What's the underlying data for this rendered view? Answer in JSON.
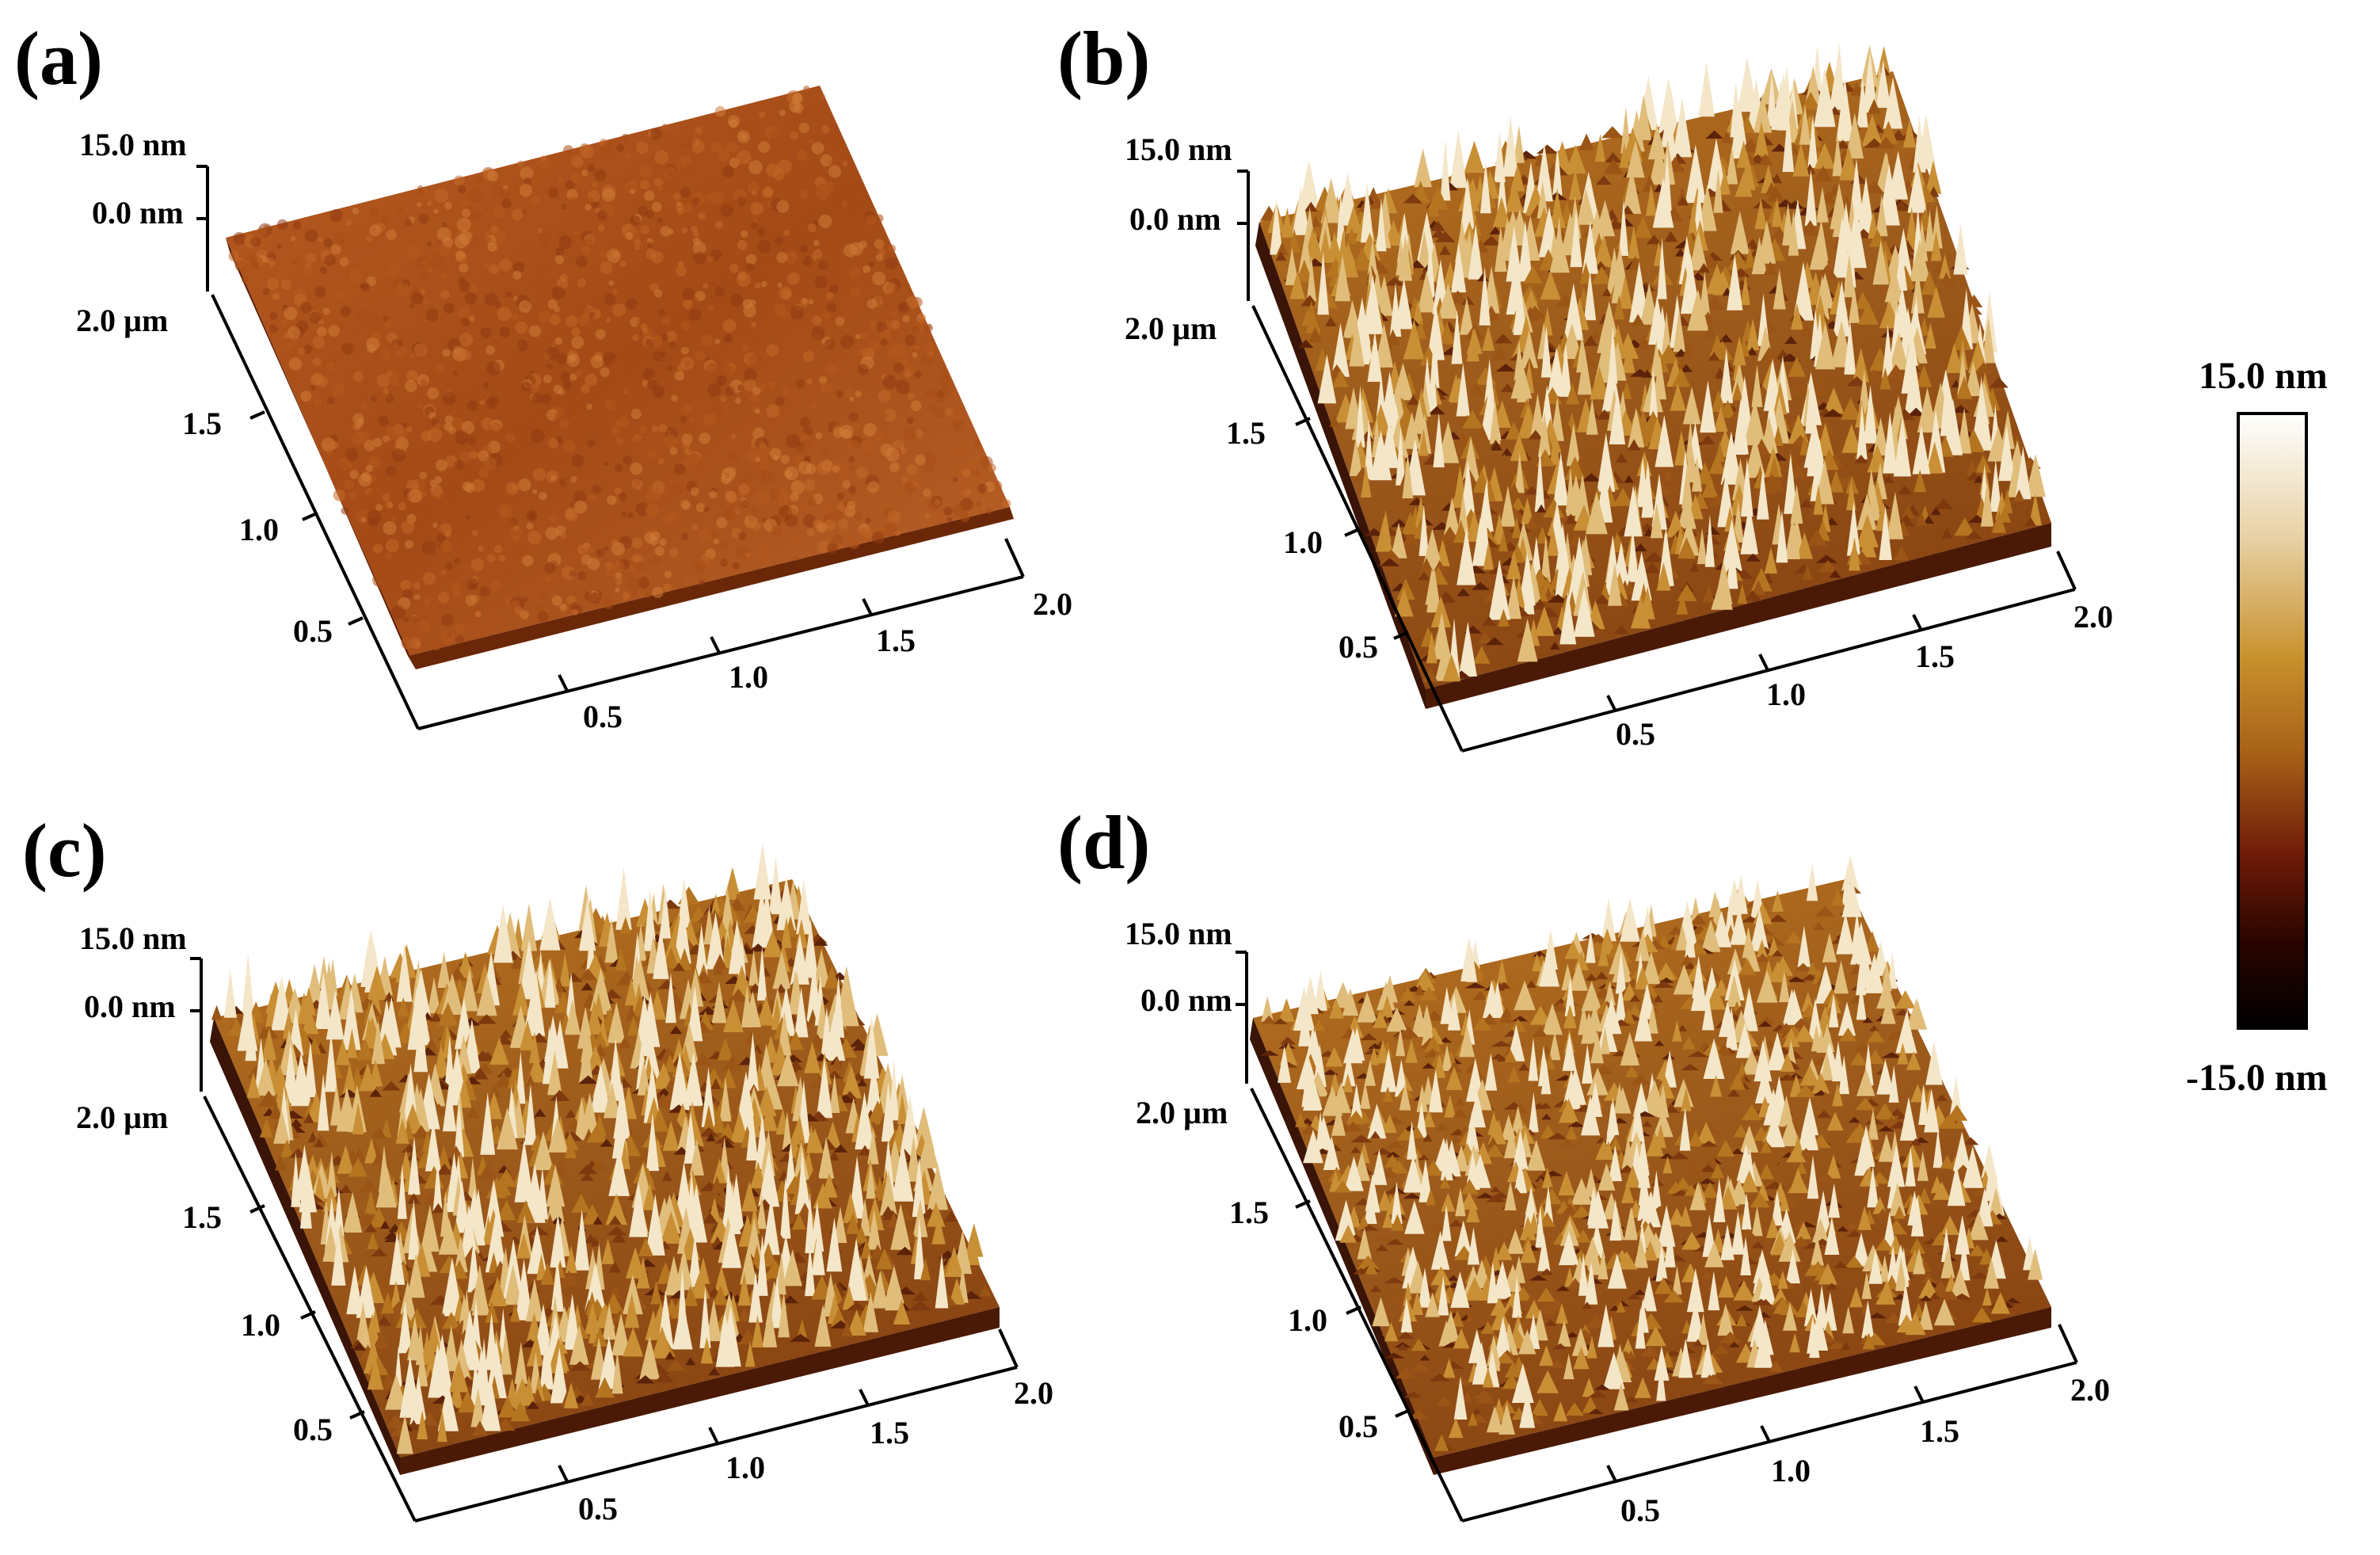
{
  "figure": {
    "panels": [
      {
        "label": "(a)",
        "z_top": "15.0 nm",
        "z_zero": "0.0 nm",
        "y_axis": {
          "start_label": "2.0 µm",
          "ticks": [
            "1.5",
            "1.0",
            "0.5"
          ]
        },
        "x_axis": {
          "ticks": [
            "0.5",
            "1.0",
            "1.5",
            "2.0"
          ]
        },
        "surface": {
          "roughness": "low",
          "palette": "copper-smooth"
        }
      },
      {
        "label": "(b)",
        "z_top": "15.0 nm",
        "z_zero": "0.0 nm",
        "y_axis": {
          "start_label": "2.0 µm",
          "ticks": [
            "1.5",
            "1.0",
            "0.5"
          ]
        },
        "x_axis": {
          "ticks": [
            "0.5",
            "1.0",
            "1.5",
            "2.0"
          ]
        },
        "surface": {
          "roughness": "high",
          "palette": "gold-peaks"
        }
      },
      {
        "label": "(c)",
        "z_top": "15.0 nm",
        "z_zero": "0.0 nm",
        "y_axis": {
          "start_label": "2.0 µm",
          "ticks": [
            "1.5",
            "1.0",
            "0.5"
          ]
        },
        "x_axis": {
          "ticks": [
            "0.5",
            "1.0",
            "1.5",
            "2.0"
          ]
        },
        "surface": {
          "roughness": "high",
          "palette": "gold-peaks"
        }
      },
      {
        "label": "(d)",
        "z_top": "15.0 nm",
        "z_zero": "0.0 nm",
        "y_axis": {
          "start_label": "2.0 µm",
          "ticks": [
            "1.5",
            "1.0",
            "0.5"
          ]
        },
        "x_axis": {
          "ticks": [
            "0.5",
            "1.0",
            "1.5",
            "2.0"
          ]
        },
        "surface": {
          "roughness": "medium",
          "palette": "gold-peaks"
        }
      }
    ],
    "colorbar": {
      "max_label": "15.0 nm",
      "min_label": "-15.0 nm",
      "stops": [
        "#ffffff",
        "#e8d2a6",
        "#c8902c",
        "#a86218",
        "#6e1a08",
        "#2a0500",
        "#000000"
      ]
    }
  }
}
